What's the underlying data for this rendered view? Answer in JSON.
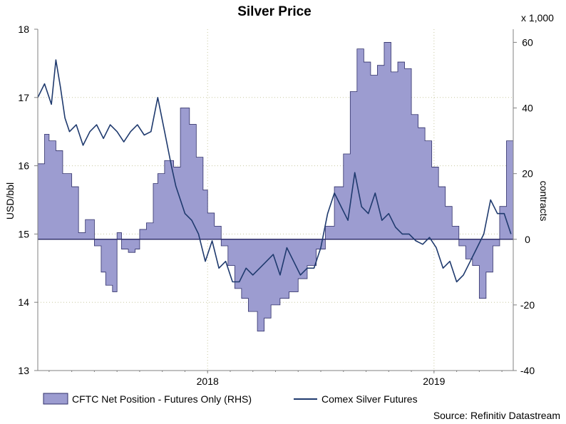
{
  "chart_data": {
    "type": "area+line",
    "title": "Silver Price",
    "left_axis": {
      "label": "USD/bbl",
      "ylim": [
        13,
        18
      ],
      "ticks": [
        13,
        14,
        15,
        16,
        17,
        18
      ]
    },
    "right_axis": {
      "label": "contracts",
      "multiplier_label": "x 1,000",
      "ylim": [
        -40,
        64
      ],
      "ticks": [
        -40,
        -20,
        0,
        20,
        40,
        60
      ]
    },
    "x_axis": {
      "range": [
        2017.25,
        2019.35
      ],
      "tick_labels": [
        {
          "label": "2018",
          "x": 2018.0
        },
        {
          "label": "2019",
          "x": 2019.0
        }
      ]
    },
    "source": "Source: Refinitiv Datastream",
    "colors": {
      "area_fill": "#9c9cd0",
      "area_line": "#30306a",
      "line": "#1f3a6e",
      "grid": "#c8c8a0",
      "axis": "#808080",
      "zero_line": "#30306a"
    },
    "series": [
      {
        "name": "CFTC Net Position - Futures Only (RHS)",
        "kind": "area",
        "axis": "right",
        "x": [
          2017.25,
          2017.28,
          2017.3,
          2017.33,
          2017.36,
          2017.4,
          2017.43,
          2017.46,
          2017.5,
          2017.53,
          2017.55,
          2017.58,
          2017.6,
          2017.62,
          2017.65,
          2017.68,
          2017.7,
          2017.73,
          2017.76,
          2017.78,
          2017.81,
          2017.85,
          2017.88,
          2017.92,
          2017.95,
          2017.98,
          2018.0,
          2018.03,
          2018.06,
          2018.09,
          2018.12,
          2018.15,
          2018.18,
          2018.22,
          2018.25,
          2018.28,
          2018.32,
          2018.36,
          2018.4,
          2018.44,
          2018.48,
          2018.52,
          2018.56,
          2018.6,
          2018.63,
          2018.66,
          2018.69,
          2018.72,
          2018.75,
          2018.78,
          2018.81,
          2018.84,
          2018.87,
          2018.9,
          2018.93,
          2018.96,
          2018.99,
          2019.02,
          2019.05,
          2019.08,
          2019.11,
          2019.14,
          2019.17,
          2019.2,
          2019.23,
          2019.26,
          2019.29,
          2019.32,
          2019.35
        ],
        "values": [
          23,
          32,
          30,
          27,
          20,
          16,
          2,
          6,
          -2,
          -10,
          -14,
          -16,
          2,
          -3,
          -4,
          -3,
          3,
          5,
          17,
          20,
          24,
          22,
          40,
          35,
          25,
          15,
          8,
          4,
          -2,
          -8,
          -15,
          -18,
          -22,
          -28,
          -24,
          -20,
          -18,
          -16,
          -12,
          -8,
          -3,
          4,
          16,
          26,
          45,
          58,
          54,
          50,
          53,
          60,
          51,
          54,
          52,
          38,
          34,
          30,
          22,
          16,
          10,
          4,
          -2,
          -6,
          -8,
          -18,
          -10,
          -2,
          10,
          30,
          30
        ]
      },
      {
        "name": "Comex Silver Futures",
        "kind": "line",
        "axis": "left",
        "x": [
          2017.25,
          2017.28,
          2017.31,
          2017.33,
          2017.35,
          2017.37,
          2017.39,
          2017.42,
          2017.45,
          2017.48,
          2017.51,
          2017.54,
          2017.57,
          2017.6,
          2017.63,
          2017.66,
          2017.69,
          2017.72,
          2017.75,
          2017.78,
          2017.81,
          2017.84,
          2017.86,
          2017.88,
          2017.9,
          2017.93,
          2017.96,
          2017.99,
          2018.02,
          2018.05,
          2018.08,
          2018.11,
          2018.14,
          2018.17,
          2018.2,
          2018.23,
          2018.26,
          2018.29,
          2018.32,
          2018.35,
          2018.38,
          2018.41,
          2018.44,
          2018.47,
          2018.5,
          2018.53,
          2018.56,
          2018.59,
          2018.62,
          2018.65,
          2018.68,
          2018.71,
          2018.74,
          2018.77,
          2018.8,
          2018.83,
          2018.86,
          2018.89,
          2018.92,
          2018.95,
          2018.98,
          2019.01,
          2019.04,
          2019.07,
          2019.1,
          2019.13,
          2019.16,
          2019.19,
          2019.22,
          2019.25,
          2019.28,
          2019.31,
          2019.34
        ],
        "values": [
          17.0,
          17.2,
          16.9,
          17.55,
          17.15,
          16.7,
          16.5,
          16.6,
          16.3,
          16.5,
          16.6,
          16.4,
          16.6,
          16.5,
          16.35,
          16.5,
          16.6,
          16.45,
          16.5,
          17.0,
          16.5,
          16.0,
          15.7,
          15.5,
          15.3,
          15.2,
          15.0,
          14.6,
          14.9,
          14.5,
          14.6,
          14.3,
          14.3,
          14.5,
          14.4,
          14.5,
          14.6,
          14.7,
          14.4,
          14.8,
          14.6,
          14.4,
          14.5,
          14.5,
          14.8,
          15.3,
          15.6,
          15.4,
          15.2,
          15.9,
          15.4,
          15.3,
          15.6,
          15.2,
          15.3,
          15.1,
          15.0,
          15.0,
          14.9,
          14.85,
          14.95,
          14.8,
          14.5,
          14.6,
          14.3,
          14.4,
          14.6,
          14.8,
          15.0,
          15.5,
          15.3,
          15.3,
          15.0
        ]
      }
    ]
  }
}
